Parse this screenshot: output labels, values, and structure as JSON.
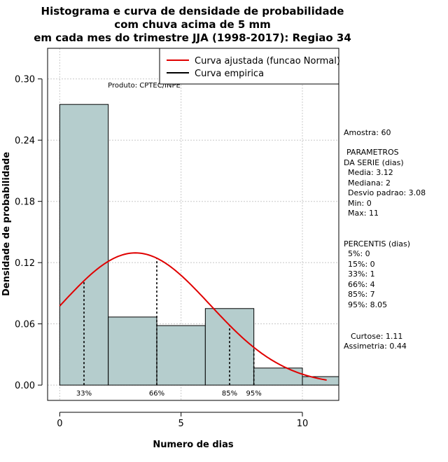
{
  "chart_data": {
    "type": "bar",
    "title_lines": [
      "Histograma e curva de densidade de probabilidade",
      "com chuva acima de 5 mm",
      "em cada mes do trimestre JJA (1998-2017): Regiao 34"
    ],
    "xlabel": "Numero de dias",
    "ylabel": "Densidade de probabilidade",
    "xlim": [
      -0.5,
      11.5
    ],
    "ylim": [
      -0.015,
      0.33
    ],
    "x_ticks": [
      0,
      5,
      10
    ],
    "x_tick_labels": [
      "0",
      "5",
      "10"
    ],
    "y_ticks": [
      0.0,
      0.06,
      0.12,
      0.18,
      0.24,
      0.3
    ],
    "y_tick_labels": [
      "0.00",
      "0.06",
      "0.12",
      "0.18",
      "0.24",
      "0.30"
    ],
    "bins": [
      {
        "from": 0,
        "to": 2,
        "density": 0.275
      },
      {
        "from": 2,
        "to": 4,
        "density": 0.0667
      },
      {
        "from": 4,
        "to": 6,
        "density": 0.0583
      },
      {
        "from": 6,
        "to": 8,
        "density": 0.075
      },
      {
        "from": 8,
        "to": 10,
        "density": 0.0167
      },
      {
        "from": 10,
        "to": 11.5,
        "density": 0.0083
      }
    ],
    "bar_color": "#b5cdcd",
    "curve_color": "#e00000",
    "normal_fit": {
      "mean": 3.12,
      "sd": 3.08,
      "x_from": 0,
      "x_to": 11
    },
    "percentile_lines": [
      {
        "x": 1,
        "label": "33%"
      },
      {
        "x": 4,
        "label": "66%"
      },
      {
        "x": 7,
        "label": "85%"
      },
      {
        "x": 8,
        "label": "95%"
      }
    ],
    "legend": {
      "placement": "top-right",
      "entries": [
        {
          "label": "Curva ajustada (funcao Normal)",
          "color": "#e00000"
        },
        {
          "label": "Curva empirica",
          "color": "#000000"
        }
      ]
    },
    "product_label": "Produto: CPTEC/INPE",
    "grid": true
  },
  "side_panel": {
    "sample": "Amostra: 60",
    "params_title_1": "PARAMETROS",
    "params_title_2": "DA SERIE (dias)",
    "mean": "Media: 3.12",
    "median": "Mediana: 2",
    "sd": "Desvio padrao: 3.08",
    "min": "Min: 0",
    "max": "Max: 11",
    "percentis_title": "PERCENTIS (dias)",
    "p5": "5%: 0",
    "p15": "15%: 0",
    "p33": "33%: 1",
    "p66": "66%: 4",
    "p85": "85%: 7",
    "p95": "95%: 8.05",
    "kurtosis": "Curtose: 1.11",
    "skewness": "Assimetria: 0.44"
  }
}
